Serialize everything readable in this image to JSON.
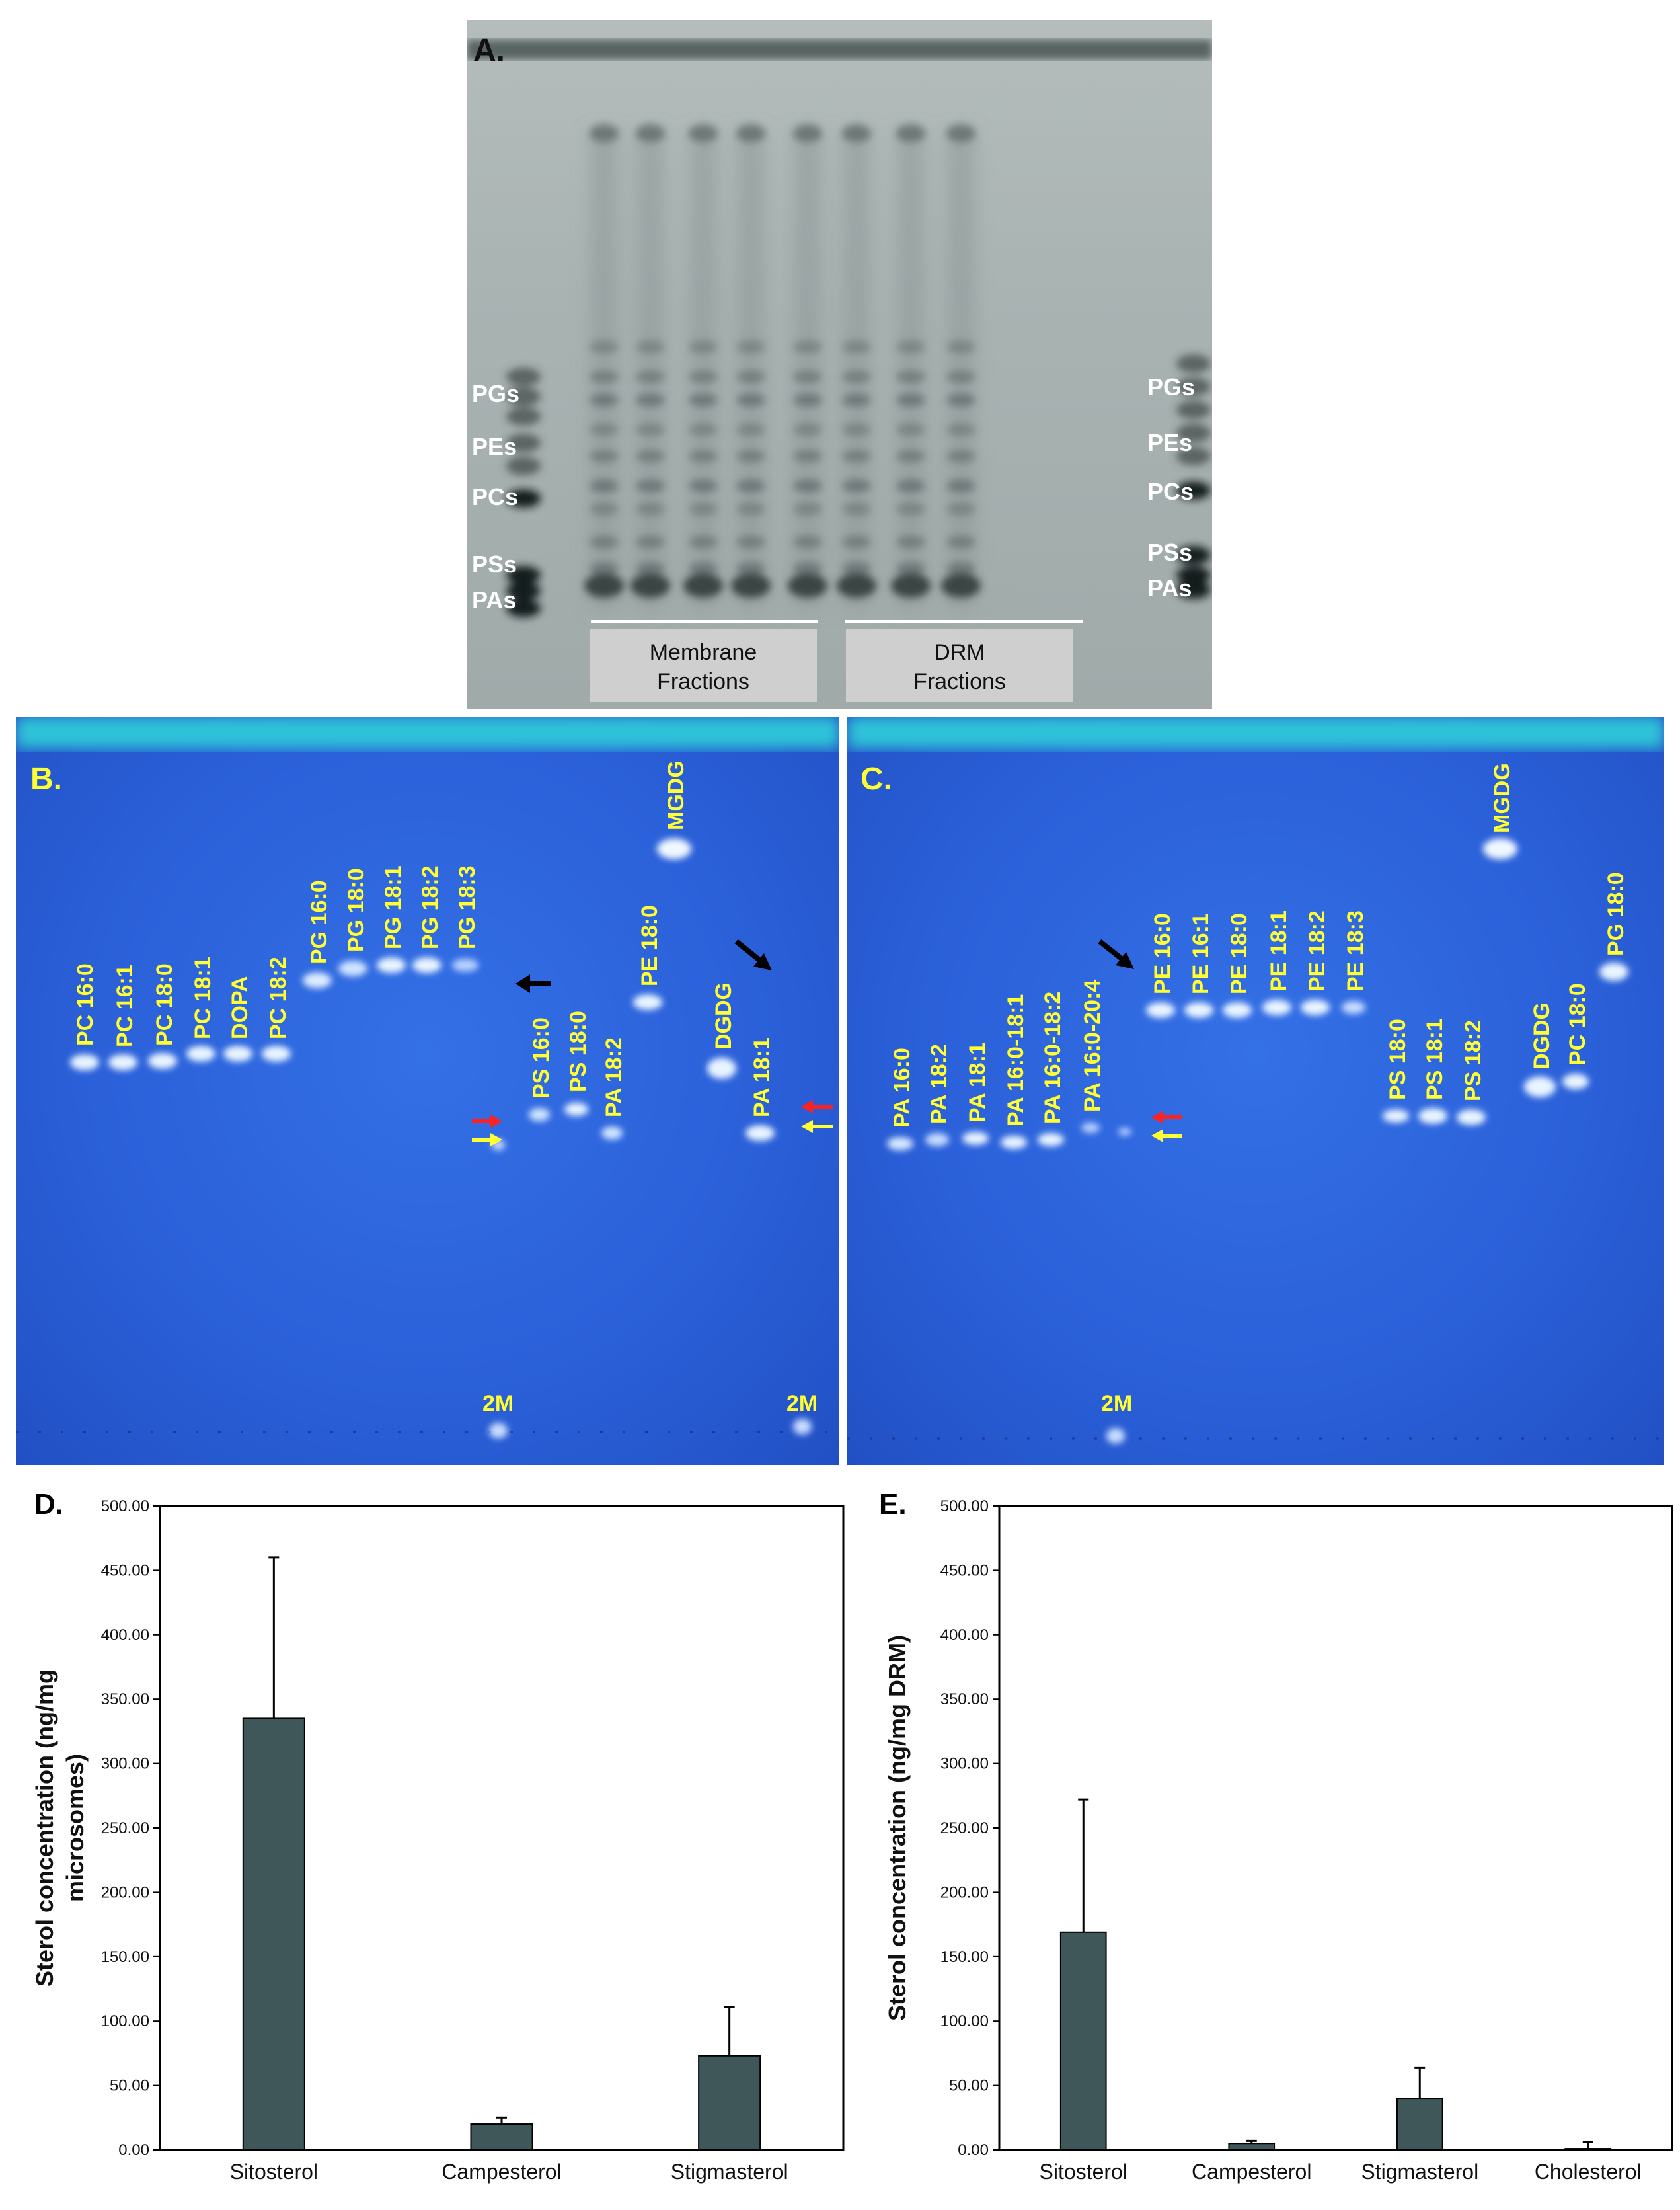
{
  "panelA": {
    "letter": "A.",
    "left_labels": [
      "PGs",
      "PEs",
      "PCs",
      "PSs",
      "PAs"
    ],
    "right_labels": [
      "PGs",
      "PEs",
      "PCs",
      "PSs",
      "PAs"
    ],
    "box1": [
      "Membrane",
      "Fractions"
    ],
    "box2": [
      "DRM",
      "Fractions"
    ]
  },
  "panelB": {
    "letter": "B.",
    "lanes": [
      "PC 16:0",
      "PC 16:1",
      "PC 18:0",
      "PC 18:1",
      "DOPA",
      "PC 18:2",
      "PG 16:0",
      "PG 18:0",
      "PG 18:1",
      "PG 18:2",
      "PG 18:3",
      "PS 16:0",
      "PS 18:0",
      "PA 18:2",
      "PE 18:0",
      "MGDG",
      "DGDG",
      "PA 18:1"
    ],
    "marker": "2M"
  },
  "panelC": {
    "letter": "C.",
    "lanes": [
      "PA 16:0",
      "PA 18:2",
      "PA 18:1",
      "PA 16:0-18:1",
      "PA 16:0-18:2",
      "PA 16:0-20:4",
      "PE 16:0",
      "PE 16:1",
      "PE 18:0",
      "PE 18:1",
      "PE 18:2",
      "PE 18:3",
      "PS 18:0",
      "PS 18:1",
      "PS 18:2",
      "MGDG",
      "DGDG",
      "PC 18:0",
      "PG 18:0"
    ],
    "marker": "2M"
  },
  "chart_data": [
    {
      "panel": "D.",
      "type": "bar",
      "categories": [
        "Sitosterol",
        "Campesterol",
        "Stigmasterol"
      ],
      "values": [
        335,
        20,
        73
      ],
      "errors": [
        125,
        5,
        38
      ],
      "ylabel_lines": [
        "Sterol concentration (ng/mg",
        "microsomes)"
      ],
      "ylim": [
        0,
        500
      ],
      "yticks": [
        "0.00",
        "50.00",
        "100.00",
        "150.00",
        "200.00",
        "250.00",
        "300.00",
        "350.00",
        "400.00",
        "450.00",
        "500.00"
      ],
      "bar_color": "#3f5758"
    },
    {
      "panel": "E.",
      "type": "bar",
      "categories": [
        "Sitosterol",
        "Campesterol",
        "Stigmasterol",
        "Cholesterol"
      ],
      "values": [
        169,
        5,
        40,
        1
      ],
      "errors": [
        103,
        2,
        24,
        5
      ],
      "ylabel_lines": [
        "Sterol concentration (ng/mg DRM)"
      ],
      "ylim": [
        0,
        500
      ],
      "yticks": [
        "0.00",
        "50.00",
        "100.00",
        "150.00",
        "200.00",
        "250.00",
        "300.00",
        "350.00",
        "400.00",
        "450.00",
        "500.00"
      ],
      "bar_color": "#3f5758"
    }
  ]
}
